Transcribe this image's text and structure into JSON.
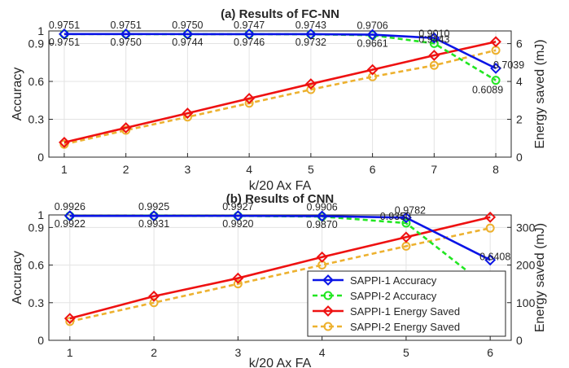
{
  "colors": {
    "sappi1_accuracy": "#0a14e6",
    "sappi2_accuracy": "#22e622",
    "sappi1_energy": "#ee1111",
    "sappi2_energy": "#edb12f",
    "grid": "#e3e3e3",
    "axis": "#262626"
  },
  "legend": {
    "position": "bottom-right of panel (b)",
    "entries": [
      "SAPPI-1 Accuracy",
      "SAPPI-2 Accuracy",
      "SAPPI-1 Energy Saved",
      "SAPPI-2 Energy Saved"
    ]
  },
  "chart_data": [
    {
      "type": "line",
      "title": "(a) Results of FC-NN",
      "xlabel": "k/20 Ax FA",
      "ylabel": "Accuracy",
      "y2label": "Energy saved (mJ)",
      "x": [
        1,
        2,
        3,
        4,
        5,
        6,
        7,
        8
      ],
      "xlim": [
        0.75,
        8.25
      ],
      "ylim": [
        0,
        1
      ],
      "yticks": [
        0,
        0.3,
        0.6,
        0.9,
        1
      ],
      "ytick_labels": [
        "0",
        "0.3",
        "0.6",
        "0.9",
        "1"
      ],
      "y2lim": [
        0,
        6.67
      ],
      "y2ticks": [
        0,
        2,
        4,
        6
      ],
      "grid": true,
      "series": [
        {
          "name": "SAPPI-1 Accuracy",
          "axis": "left",
          "values": [
            0.9751,
            0.9751,
            0.975,
            0.9747,
            0.9743,
            0.9706,
            0.9443,
            0.7039
          ],
          "labels": [
            "0.9751",
            "0.9751",
            "0.9750",
            "0.9747",
            "0.9743",
            "0.9706",
            "0.9443",
            "0.7039"
          ]
        },
        {
          "name": "SAPPI-2 Accuracy",
          "axis": "left",
          "values": [
            0.9751,
            0.975,
            0.9744,
            0.9746,
            0.9732,
            0.9661,
            0.901,
            0.6089
          ],
          "labels": [
            "0.9751",
            "0.9750",
            "0.9744",
            "0.9746",
            "0.9732",
            "0.9661",
            "0.9010",
            "0.6089"
          ]
        },
        {
          "name": "SAPPI-1 Energy Saved",
          "axis": "right",
          "values": [
            0.78,
            1.55,
            2.32,
            3.1,
            3.87,
            4.62,
            5.38,
            6.1
          ]
        },
        {
          "name": "SAPPI-2 Energy Saved",
          "axis": "right",
          "values": [
            0.68,
            1.42,
            2.12,
            2.85,
            3.57,
            4.25,
            4.85,
            5.65
          ]
        }
      ]
    },
    {
      "type": "line",
      "title": "(b) Results of CNN",
      "xlabel": "k/20 Ax FA",
      "ylabel": "Accuracy",
      "y2label": "Energy saved (mJ)",
      "x": [
        1,
        2,
        3,
        4,
        5,
        6
      ],
      "xlim": [
        0.75,
        6.25
      ],
      "ylim": [
        0,
        1
      ],
      "yticks": [
        0,
        0.3,
        0.6,
        0.9,
        1
      ],
      "ytick_labels": [
        "0",
        "0.3",
        "0.6",
        "0.9",
        "1"
      ],
      "y2lim": [
        0,
        333
      ],
      "y2ticks": [
        0,
        100,
        200,
        300
      ],
      "grid": true,
      "series": [
        {
          "name": "SAPPI-1 Accuracy",
          "axis": "left",
          "values": [
            0.9926,
            0.9925,
            0.9927,
            0.9906,
            0.9782,
            0.6408
          ],
          "labels": [
            "0.9926",
            "0.9925",
            "0.9927",
            "0.9906",
            "0.9782",
            "0.6408"
          ]
        },
        {
          "name": "SAPPI-2 Accuracy",
          "axis": "left",
          "values": [
            0.9922,
            0.9931,
            0.992,
            0.987,
            0.935,
            0.4092
          ],
          "labels": [
            "0.9922",
            "0.9931",
            "0.9920",
            "0.9870",
            "0.9350",
            "0.4092"
          ]
        },
        {
          "name": "SAPPI-1 Energy Saved",
          "axis": "right",
          "values": [
            58,
            117,
            165,
            221,
            274,
            327
          ]
        },
        {
          "name": "SAPPI-2 Energy Saved",
          "axis": "right",
          "values": [
            50,
            100,
            150,
            200,
            250,
            298
          ]
        }
      ]
    }
  ]
}
